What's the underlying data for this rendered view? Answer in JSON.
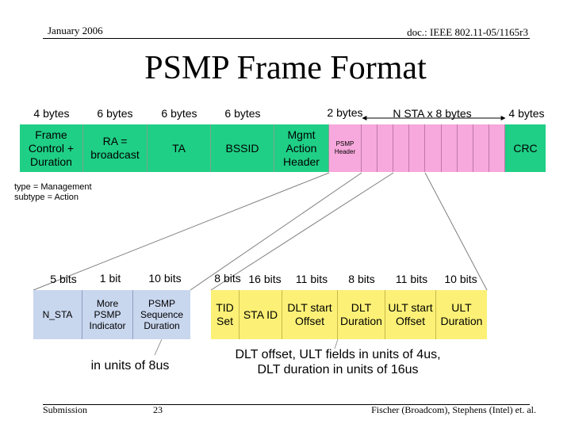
{
  "header": {
    "date": "January 2006",
    "doc": "doc.: IEEE 802.11-05/1165r3"
  },
  "title": "PSMP Frame Format",
  "frame": {
    "size_labels": [
      "4 bytes",
      "6 bytes",
      "6 bytes",
      "6 bytes",
      "2 bytes",
      "N STA x 8 bytes",
      "4 bytes"
    ],
    "fields": {
      "frame_control": "Frame Control + Duration",
      "ra": "RA = broadcast",
      "ta": "TA",
      "bssid": "BSSID",
      "mgmt": "Mgmt Action Header",
      "psmp_header": "PSMP Header",
      "crc": "CRC"
    },
    "note": "type = Management\nsubtype = Action"
  },
  "psmp_header_detail": {
    "size_labels": [
      "5 bits",
      "1 bit",
      "10 bits"
    ],
    "fields": {
      "n_sta": "N_STA",
      "more": "More PSMP Indicator",
      "seq_duration": "PSMP Sequence Duration"
    },
    "note": "in units of 8us"
  },
  "sta_info_detail": {
    "size_labels": [
      "8 bits",
      "16 bits",
      "11 bits",
      "8 bits",
      "11 bits",
      "10 bits"
    ],
    "fields": {
      "tid_set": "TID Set",
      "sta_id": "STA ID",
      "dlt_start": "DLT start Offset",
      "dlt_duration": "DLT Duration",
      "ult_start": "ULT start Offset",
      "ult_duration": "ULT Duration"
    },
    "note": "DLT offset, ULT fields in units of 4us,\nDLT duration in units of 16us"
  },
  "footer": {
    "left": "Submission",
    "page": "23",
    "right": "Fischer (Broadcom), Stephens (Intel) et. al."
  }
}
